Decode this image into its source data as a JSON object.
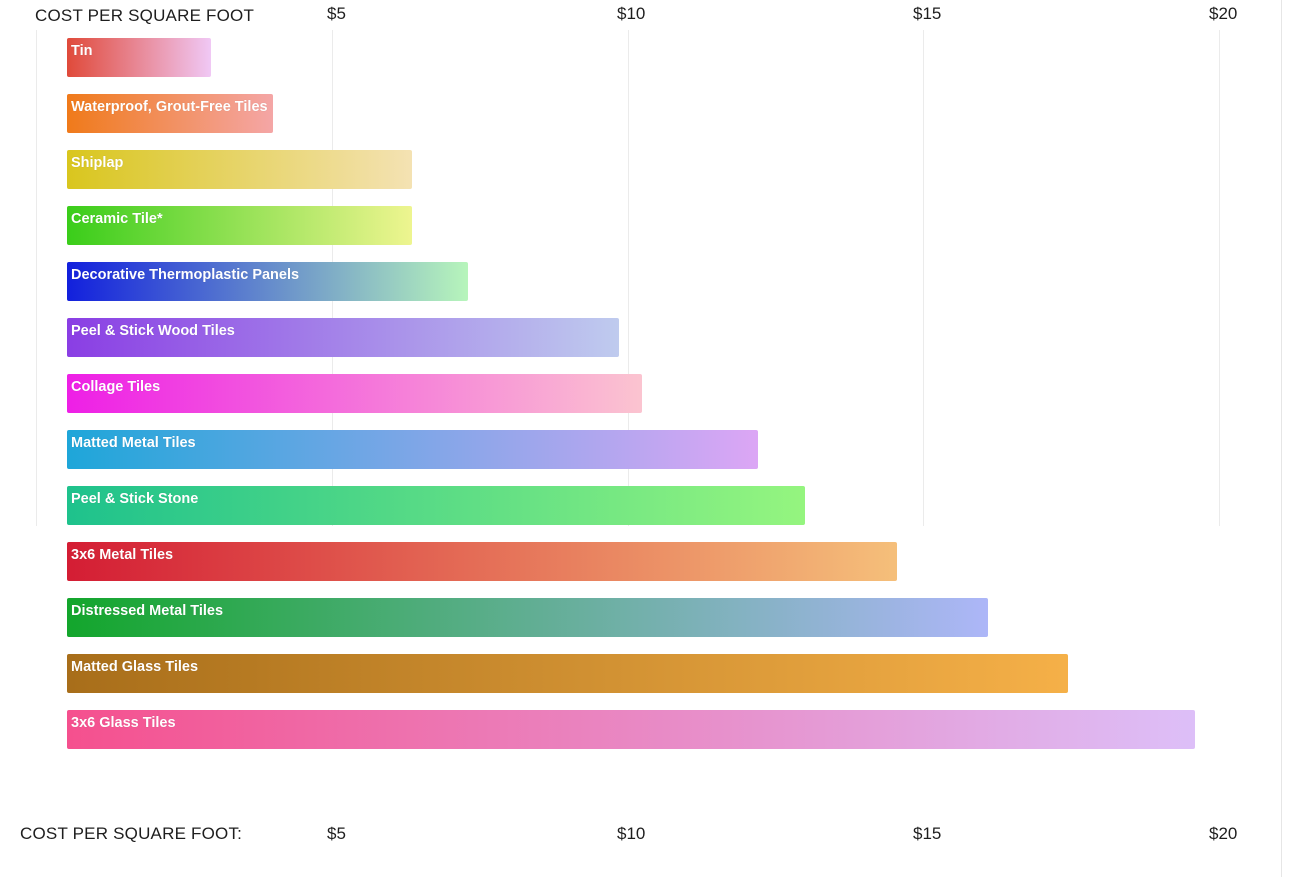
{
  "chart_data": {
    "type": "bar",
    "orientation": "horizontal",
    "title": "",
    "xlabel_top": "COST PER SQUARE FOOT",
    "xlabel_bottom": "COST PER SQUARE FOOT:",
    "ylabel": "",
    "xlim": [
      0.5,
      20
    ],
    "ticks": [
      {
        "value": 5,
        "label": "$5"
      },
      {
        "value": 10,
        "label": "$10"
      },
      {
        "value": 15,
        "label": "$15"
      },
      {
        "value": 20,
        "label": "$20"
      }
    ],
    "grid": true,
    "categories": [
      "Tin",
      "Waterproof, Grout-Free Tiles",
      "Shiplap",
      "Ceramic Tile*",
      "Decorative Thermoplastic Panels",
      "Peel & Stick Wood Tiles",
      "Collage Tiles",
      "Matted Metal Tiles",
      "Peel & Stick Stone",
      "3x6 Metal Tiles",
      "Distressed Metal Tiles",
      "Matted Glass Tiles",
      "3x6 Glass Tiles"
    ],
    "values": [
      2.95,
      4.0,
      6.35,
      6.35,
      7.3,
      9.85,
      10.25,
      12.2,
      13.0,
      14.55,
      16.1,
      17.45,
      19.6
    ],
    "bar_gradients": [
      [
        "#e04a3a",
        "#f0c8f5"
      ],
      [
        "#f07a1a",
        "#f4a6a6"
      ],
      [
        "#d9c61e",
        "#f4e2b3"
      ],
      [
        "#3acd1a",
        "#eef590"
      ],
      [
        "#1220dd",
        "#b7f5bb"
      ],
      [
        "#8a3ee4",
        "#bfcbee"
      ],
      [
        "#ee1fe6",
        "#fbc4d0"
      ],
      [
        "#1ea6d9",
        "#dca6f5"
      ],
      [
        "#1ec28c",
        "#95f57f"
      ],
      [
        "#d41d34",
        "#f5bf7a"
      ],
      [
        "#13a62c",
        "#adb6f8"
      ],
      [
        "#a86e1a",
        "#f5b048"
      ],
      [
        "#f5508e",
        "#ddbff8"
      ]
    ]
  }
}
